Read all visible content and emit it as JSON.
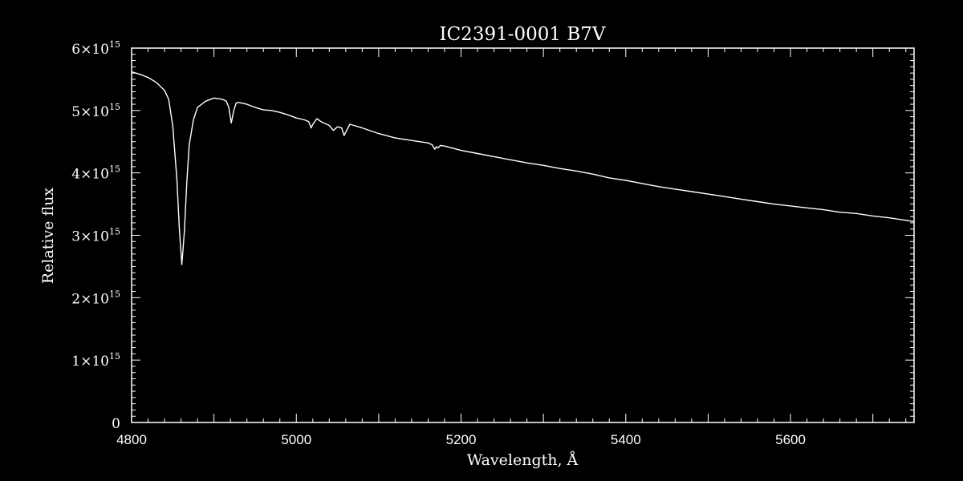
{
  "chart_data": {
    "type": "line",
    "title": "IC2391-0001   B7V",
    "xlabel": "Wavelength, Å",
    "ylabel": "Relative flux",
    "xlim": [
      4800,
      5750
    ],
    "ylim": [
      0,
      6000000000000000.0
    ],
    "x_ticks": [
      4800,
      5000,
      5200,
      5400,
      5600
    ],
    "x_tick_labels": [
      "4800",
      "5000",
      "5200",
      "5400",
      "5600"
    ],
    "y_ticks": [
      0,
      1000000000000000.0,
      2000000000000000.0,
      3000000000000000.0,
      4000000000000000.0,
      5000000000000000.0,
      6000000000000000.0
    ],
    "y_tick_labels": [
      {
        "mantissa": "0",
        "exponent": ""
      },
      {
        "mantissa": "1×10",
        "exponent": "15"
      },
      {
        "mantissa": "2×10",
        "exponent": "15"
      },
      {
        "mantissa": "3×10",
        "exponent": "15"
      },
      {
        "mantissa": "4×10",
        "exponent": "15"
      },
      {
        "mantissa": "5×10",
        "exponent": "15"
      },
      {
        "mantissa": "6×10",
        "exponent": "15"
      }
    ],
    "grid": false,
    "colors": {
      "background": "#000000",
      "line": "#ffffff",
      "axes": "#ffffff"
    },
    "series": [
      {
        "x": [
          4800,
          4810,
          4820,
          4830,
          4840,
          4845,
          4850,
          4855,
          4858,
          4861,
          4864,
          4867,
          4870,
          4875,
          4880,
          4890,
          4900,
          4910,
          4915,
          4918,
          4921,
          4924,
          4927,
          4930,
          4940,
          4950,
          4960,
          4970,
          4980,
          4990,
          5000,
          5010,
          5015,
          5018,
          5020,
          5025,
          5030,
          5040,
          5045,
          5050,
          5055,
          5058,
          5061,
          5065,
          5070,
          5080,
          5100,
          5120,
          5140,
          5160,
          5165,
          5168,
          5170,
          5172,
          5175,
          5180,
          5200,
          5220,
          5240,
          5260,
          5280,
          5300,
          5320,
          5340,
          5360,
          5380,
          5400,
          5420,
          5440,
          5460,
          5480,
          5500,
          5520,
          5540,
          5560,
          5580,
          5600,
          5620,
          5640,
          5660,
          5680,
          5700,
          5720,
          5740,
          5750
        ],
        "y": [
          5620000000000000.0,
          5580000000000000.0,
          5530000000000000.0,
          5450000000000000.0,
          5320000000000000.0,
          5180000000000000.0,
          4750000000000000.0,
          3900000000000000.0,
          3100000000000000.0,
          2530000000000000.0,
          3050000000000000.0,
          3850000000000000.0,
          4450000000000000.0,
          4850000000000000.0,
          5050000000000000.0,
          5150000000000000.0,
          5200000000000000.0,
          5180000000000000.0,
          5150000000000000.0,
          5050000000000000.0,
          4800000000000000.0,
          5000000000000000.0,
          5120000000000000.0,
          5130000000000000.0,
          5100000000000000.0,
          5050000000000000.0,
          5010000000000000.0,
          5000000000000000.0,
          4970000000000000.0,
          4930000000000000.0,
          4880000000000000.0,
          4850000000000000.0,
          4820000000000000.0,
          4720000000000000.0,
          4780000000000000.0,
          4870000000000000.0,
          4820000000000000.0,
          4760000000000000.0,
          4680000000000000.0,
          4740000000000000.0,
          4720000000000000.0,
          4600000000000000.0,
          4680000000000000.0,
          4780000000000000.0,
          4760000000000000.0,
          4720000000000000.0,
          4630000000000000.0,
          4560000000000000.0,
          4520000000000000.0,
          4480000000000000.0,
          4450000000000000.0,
          4380000000000000.0,
          4420000000000000.0,
          4400000000000000.0,
          4440000000000000.0,
          4430000000000000.0,
          4360000000000000.0,
          4310000000000000.0,
          4260000000000000.0,
          4210000000000000.0,
          4160000000000000.0,
          4120000000000000.0,
          4070000000000000.0,
          4030000000000000.0,
          3980000000000000.0,
          3920000000000000.0,
          3880000000000000.0,
          3830000000000000.0,
          3780000000000000.0,
          3740000000000000.0,
          3700000000000000.0,
          3660000000000000.0,
          3620000000000000.0,
          3580000000000000.0,
          3540000000000000.0,
          3500000000000000.0,
          3470000000000000.0,
          3440000000000000.0,
          3410000000000000.0,
          3370000000000000.0,
          3350000000000000.0,
          3310000000000000.0,
          3280000000000000.0,
          3240000000000000.0,
          3220000000000000.0
        ]
      }
    ]
  }
}
